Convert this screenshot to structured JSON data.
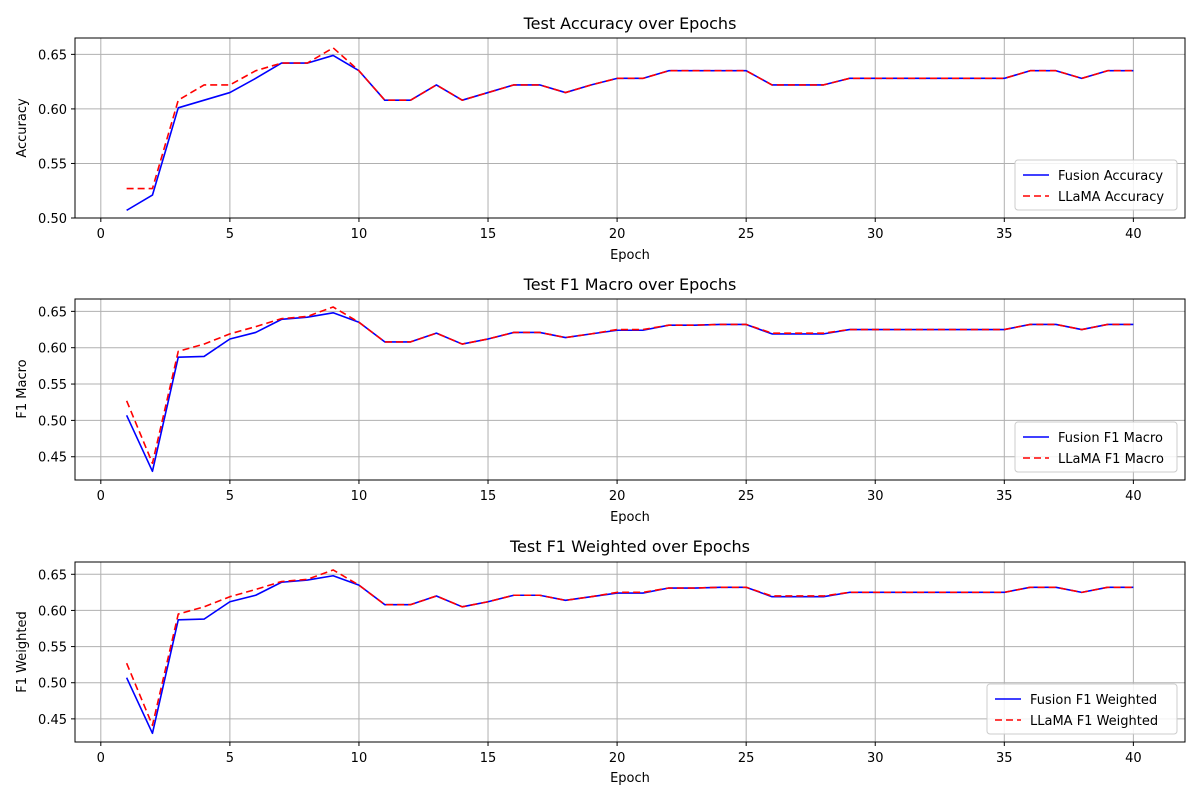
{
  "chart_data": [
    {
      "type": "line",
      "title": "Test Accuracy over Epochs",
      "xlabel": "Epoch",
      "ylabel": "Accuracy",
      "xlim": [
        -1,
        42
      ],
      "ylim": [
        0.5,
        0.665
      ],
      "xticks": [
        0,
        5,
        10,
        15,
        20,
        25,
        30,
        35,
        40
      ],
      "yticks": [
        0.5,
        0.55,
        0.6,
        0.65
      ],
      "ytick_labels": [
        "0.50",
        "0.55",
        "0.60",
        "0.65"
      ],
      "grid": true,
      "legend_position": "bottom-right",
      "x": [
        1,
        2,
        3,
        4,
        5,
        6,
        7,
        8,
        9,
        10,
        11,
        12,
        13,
        14,
        15,
        16,
        17,
        18,
        19,
        20,
        21,
        22,
        23,
        24,
        25,
        26,
        27,
        28,
        29,
        30,
        31,
        32,
        33,
        34,
        35,
        36,
        37,
        38,
        39,
        40
      ],
      "series": [
        {
          "name": "Fusion Accuracy",
          "color": "#0000ff",
          "dash": "solid",
          "values": [
            0.507,
            0.521,
            0.601,
            0.608,
            0.615,
            0.628,
            0.642,
            0.642,
            0.649,
            0.635,
            0.608,
            0.608,
            0.622,
            0.608,
            0.615,
            0.622,
            0.622,
            0.615,
            0.622,
            0.628,
            0.628,
            0.635,
            0.635,
            0.635,
            0.635,
            0.622,
            0.622,
            0.622,
            0.628,
            0.628,
            0.628,
            0.628,
            0.628,
            0.628,
            0.628,
            0.635,
            0.635,
            0.628,
            0.635,
            0.635
          ]
        },
        {
          "name": "LLaMA Accuracy",
          "color": "#ff0000",
          "dash": "dashed",
          "values": [
            0.527,
            0.527,
            0.608,
            0.622,
            0.622,
            0.635,
            0.642,
            0.642,
            0.656,
            0.635,
            0.608,
            0.608,
            0.622,
            0.608,
            0.615,
            0.622,
            0.622,
            0.615,
            0.622,
            0.628,
            0.628,
            0.635,
            0.635,
            0.635,
            0.635,
            0.622,
            0.622,
            0.622,
            0.628,
            0.628,
            0.628,
            0.628,
            0.628,
            0.628,
            0.628,
            0.635,
            0.635,
            0.628,
            0.635,
            0.635
          ]
        }
      ]
    },
    {
      "type": "line",
      "title": "Test F1 Macro over Epochs",
      "xlabel": "Epoch",
      "ylabel": "F1 Macro",
      "xlim": [
        -1,
        42
      ],
      "ylim": [
        0.418,
        0.667
      ],
      "xticks": [
        0,
        5,
        10,
        15,
        20,
        25,
        30,
        35,
        40
      ],
      "yticks": [
        0.45,
        0.5,
        0.55,
        0.6,
        0.65
      ],
      "ytick_labels": [
        "0.45",
        "0.50",
        "0.55",
        "0.60",
        "0.65"
      ],
      "grid": true,
      "legend_position": "bottom-right",
      "x": [
        1,
        2,
        3,
        4,
        5,
        6,
        7,
        8,
        9,
        10,
        11,
        12,
        13,
        14,
        15,
        16,
        17,
        18,
        19,
        20,
        21,
        22,
        23,
        24,
        25,
        26,
        27,
        28,
        29,
        30,
        31,
        32,
        33,
        34,
        35,
        36,
        37,
        38,
        39,
        40
      ],
      "series": [
        {
          "name": "Fusion F1 Macro",
          "color": "#0000ff",
          "dash": "solid",
          "values": [
            0.507,
            0.43,
            0.587,
            0.588,
            0.612,
            0.621,
            0.639,
            0.642,
            0.648,
            0.635,
            0.608,
            0.608,
            0.62,
            0.605,
            0.612,
            0.621,
            0.621,
            0.614,
            0.619,
            0.624,
            0.624,
            0.631,
            0.631,
            0.632,
            0.632,
            0.619,
            0.619,
            0.619,
            0.625,
            0.625,
            0.625,
            0.625,
            0.625,
            0.625,
            0.625,
            0.632,
            0.632,
            0.625,
            0.632,
            0.632
          ]
        },
        {
          "name": "LLaMA F1 Macro",
          "color": "#ff0000",
          "dash": "dashed",
          "values": [
            0.527,
            0.441,
            0.595,
            0.605,
            0.619,
            0.629,
            0.64,
            0.643,
            0.656,
            0.635,
            0.608,
            0.608,
            0.62,
            0.605,
            0.612,
            0.621,
            0.621,
            0.614,
            0.619,
            0.625,
            0.625,
            0.631,
            0.631,
            0.632,
            0.632,
            0.62,
            0.62,
            0.62,
            0.625,
            0.625,
            0.625,
            0.625,
            0.625,
            0.625,
            0.625,
            0.632,
            0.632,
            0.625,
            0.632,
            0.632
          ]
        }
      ]
    },
    {
      "type": "line",
      "title": "Test F1 Weighted over Epochs",
      "xlabel": "Epoch",
      "ylabel": "F1 Weighted",
      "xlim": [
        -1,
        42
      ],
      "ylim": [
        0.418,
        0.667
      ],
      "xticks": [
        0,
        5,
        10,
        15,
        20,
        25,
        30,
        35,
        40
      ],
      "yticks": [
        0.45,
        0.5,
        0.55,
        0.6,
        0.65
      ],
      "ytick_labels": [
        "0.45",
        "0.50",
        "0.55",
        "0.60",
        "0.65"
      ],
      "grid": true,
      "legend_position": "bottom-right",
      "x": [
        1,
        2,
        3,
        4,
        5,
        6,
        7,
        8,
        9,
        10,
        11,
        12,
        13,
        14,
        15,
        16,
        17,
        18,
        19,
        20,
        21,
        22,
        23,
        24,
        25,
        26,
        27,
        28,
        29,
        30,
        31,
        32,
        33,
        34,
        35,
        36,
        37,
        38,
        39,
        40
      ],
      "series": [
        {
          "name": "Fusion F1 Weighted",
          "color": "#0000ff",
          "dash": "solid",
          "values": [
            0.507,
            0.43,
            0.587,
            0.588,
            0.612,
            0.621,
            0.639,
            0.642,
            0.648,
            0.635,
            0.608,
            0.608,
            0.62,
            0.605,
            0.612,
            0.621,
            0.621,
            0.614,
            0.619,
            0.624,
            0.624,
            0.631,
            0.631,
            0.632,
            0.632,
            0.619,
            0.619,
            0.619,
            0.625,
            0.625,
            0.625,
            0.625,
            0.625,
            0.625,
            0.625,
            0.632,
            0.632,
            0.625,
            0.632,
            0.632
          ]
        },
        {
          "name": "LLaMA F1 Weighted",
          "color": "#ff0000",
          "dash": "dashed",
          "values": [
            0.527,
            0.441,
            0.595,
            0.605,
            0.619,
            0.629,
            0.64,
            0.643,
            0.656,
            0.635,
            0.608,
            0.608,
            0.62,
            0.605,
            0.612,
            0.621,
            0.621,
            0.614,
            0.619,
            0.625,
            0.625,
            0.631,
            0.631,
            0.632,
            0.632,
            0.62,
            0.62,
            0.62,
            0.625,
            0.625,
            0.625,
            0.625,
            0.625,
            0.625,
            0.625,
            0.632,
            0.632,
            0.625,
            0.632,
            0.632
          ]
        }
      ]
    }
  ]
}
